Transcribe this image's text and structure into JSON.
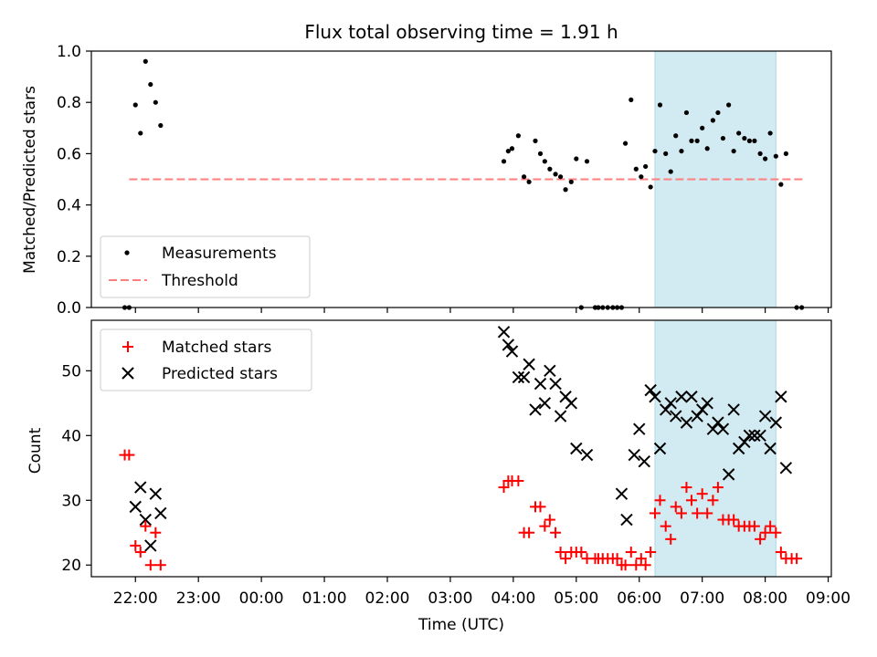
{
  "chart_data": [
    {
      "type": "scatter",
      "title": "Flux total observing time = 1.91 h",
      "xlabel": "",
      "ylabel": "Matched/Predicted stars",
      "xlim_hours": [
        -2.7,
        9.05
      ],
      "ylim": [
        0,
        1.0
      ],
      "yticks": [
        "0.0",
        "0.2",
        "0.4",
        "0.6",
        "0.8",
        "1.0"
      ],
      "highlight_span_hours": [
        6.25,
        8.17
      ],
      "highlight_color": "#add8e6",
      "threshold": {
        "name": "Threshold",
        "value": 0.5,
        "x_start": -2.1,
        "x_end": 8.6,
        "color": "#ff7f7f",
        "style": "dashed"
      },
      "legend": {
        "position": "lower-left",
        "entries": [
          "Measurements",
          "Threshold"
        ]
      },
      "series": [
        {
          "name": "Measurements",
          "marker": "dot",
          "color": "#000000",
          "points": [
            [
              -2.17,
              0.0
            ],
            [
              -2.1,
              0.0
            ],
            [
              -2.0,
              0.79
            ],
            [
              -1.92,
              0.68
            ],
            [
              -1.84,
              0.96
            ],
            [
              -1.76,
              0.87
            ],
            [
              -1.68,
              0.8
            ],
            [
              -1.6,
              0.71
            ],
            [
              3.85,
              0.57
            ],
            [
              3.92,
              0.61
            ],
            [
              3.98,
              0.62
            ],
            [
              4.08,
              0.67
            ],
            [
              4.17,
              0.51
            ],
            [
              4.25,
              0.49
            ],
            [
              4.35,
              0.65
            ],
            [
              4.43,
              0.6
            ],
            [
              4.5,
              0.57
            ],
            [
              4.58,
              0.54
            ],
            [
              4.67,
              0.52
            ],
            [
              4.75,
              0.51
            ],
            [
              4.83,
              0.46
            ],
            [
              4.92,
              0.49
            ],
            [
              5.0,
              0.58
            ],
            [
              5.08,
              0.0
            ],
            [
              5.17,
              0.57
            ],
            [
              5.3,
              0.0
            ],
            [
              5.35,
              0.0
            ],
            [
              5.42,
              0.0
            ],
            [
              5.5,
              0.0
            ],
            [
              5.58,
              0.0
            ],
            [
              5.65,
              0.0
            ],
            [
              5.72,
              0.0
            ],
            [
              5.78,
              0.64
            ],
            [
              5.87,
              0.81
            ],
            [
              5.95,
              0.54
            ],
            [
              6.03,
              0.51
            ],
            [
              6.1,
              0.55
            ],
            [
              6.18,
              0.47
            ],
            [
              6.25,
              0.61
            ],
            [
              6.33,
              0.79
            ],
            [
              6.42,
              0.6
            ],
            [
              6.5,
              0.53
            ],
            [
              6.58,
              0.67
            ],
            [
              6.67,
              0.61
            ],
            [
              6.75,
              0.76
            ],
            [
              6.83,
              0.65
            ],
            [
              6.92,
              0.65
            ],
            [
              7.0,
              0.7
            ],
            [
              7.08,
              0.62
            ],
            [
              7.17,
              0.73
            ],
            [
              7.25,
              0.76
            ],
            [
              7.33,
              0.66
            ],
            [
              7.42,
              0.79
            ],
            [
              7.5,
              0.61
            ],
            [
              7.58,
              0.68
            ],
            [
              7.67,
              0.66
            ],
            [
              7.75,
              0.65
            ],
            [
              7.83,
              0.65
            ],
            [
              7.92,
              0.6
            ],
            [
              8.0,
              0.58
            ],
            [
              8.08,
              0.68
            ],
            [
              8.17,
              0.59
            ],
            [
              8.25,
              0.48
            ],
            [
              8.33,
              0.6
            ],
            [
              8.5,
              0.0
            ],
            [
              8.58,
              0.0
            ]
          ]
        }
      ]
    },
    {
      "type": "scatter",
      "title": "",
      "xlabel": "Time (UTC)",
      "ylabel": "Count",
      "xlim_hours": [
        -2.7,
        9.05
      ],
      "ylim": [
        18.2,
        57.8
      ],
      "yticks": [
        "20",
        "30",
        "40",
        "50"
      ],
      "xticks": [
        "22:00",
        "23:00",
        "00:00",
        "01:00",
        "02:00",
        "03:00",
        "04:00",
        "05:00",
        "06:00",
        "07:00",
        "08:00",
        "09:00"
      ],
      "highlight_span_hours": [
        6.25,
        8.17
      ],
      "highlight_color": "#add8e6",
      "legend": {
        "position": "upper-left",
        "entries": [
          "Matched stars",
          "Predicted stars"
        ]
      },
      "series": [
        {
          "name": "Matched stars",
          "marker": "plus",
          "color": "#ff0000",
          "points": [
            [
              -2.17,
              37
            ],
            [
              -2.1,
              37
            ],
            [
              -2.0,
              23
            ],
            [
              -1.92,
              22
            ],
            [
              -1.84,
              26
            ],
            [
              -1.76,
              20
            ],
            [
              -1.68,
              25
            ],
            [
              -1.6,
              20
            ],
            [
              3.85,
              32
            ],
            [
              3.92,
              33
            ],
            [
              3.98,
              33
            ],
            [
              4.08,
              33
            ],
            [
              4.17,
              25
            ],
            [
              4.25,
              25
            ],
            [
              4.35,
              29
            ],
            [
              4.43,
              29
            ],
            [
              4.5,
              26
            ],
            [
              4.58,
              27
            ],
            [
              4.67,
              25
            ],
            [
              4.75,
              22
            ],
            [
              4.83,
              21
            ],
            [
              4.92,
              22
            ],
            [
              5.0,
              22
            ],
            [
              5.08,
              22
            ],
            [
              5.17,
              21
            ],
            [
              5.3,
              21
            ],
            [
              5.35,
              21
            ],
            [
              5.42,
              21
            ],
            [
              5.5,
              21
            ],
            [
              5.58,
              21
            ],
            [
              5.65,
              21
            ],
            [
              5.72,
              20
            ],
            [
              5.78,
              20
            ],
            [
              5.87,
              22
            ],
            [
              5.95,
              20
            ],
            [
              6.03,
              21
            ],
            [
              6.1,
              20
            ],
            [
              6.18,
              22
            ],
            [
              6.25,
              28
            ],
            [
              6.33,
              30
            ],
            [
              6.42,
              26
            ],
            [
              6.5,
              24
            ],
            [
              6.58,
              29
            ],
            [
              6.67,
              28
            ],
            [
              6.75,
              32
            ],
            [
              6.83,
              30
            ],
            [
              6.92,
              28
            ],
            [
              7.0,
              31
            ],
            [
              7.08,
              28
            ],
            [
              7.17,
              30
            ],
            [
              7.25,
              32
            ],
            [
              7.33,
              27
            ],
            [
              7.42,
              27
            ],
            [
              7.5,
              27
            ],
            [
              7.58,
              26
            ],
            [
              7.67,
              26
            ],
            [
              7.75,
              26
            ],
            [
              7.83,
              26
            ],
            [
              7.92,
              24
            ],
            [
              8.0,
              25
            ],
            [
              8.08,
              26
            ],
            [
              8.17,
              25
            ],
            [
              8.25,
              22
            ],
            [
              8.33,
              21
            ],
            [
              8.42,
              21
            ],
            [
              8.5,
              21
            ]
          ]
        },
        {
          "name": "Predicted stars",
          "marker": "x",
          "color": "#000000",
          "points": [
            [
              -2.0,
              29
            ],
            [
              -1.92,
              32
            ],
            [
              -1.84,
              27
            ],
            [
              -1.76,
              23
            ],
            [
              -1.68,
              31
            ],
            [
              -1.6,
              28
            ],
            [
              3.85,
              56
            ],
            [
              3.92,
              54
            ],
            [
              3.98,
              53
            ],
            [
              4.08,
              49
            ],
            [
              4.17,
              49
            ],
            [
              4.25,
              51
            ],
            [
              4.35,
              44
            ],
            [
              4.43,
              48
            ],
            [
              4.5,
              45
            ],
            [
              4.58,
              50
            ],
            [
              4.67,
              48
            ],
            [
              4.75,
              43
            ],
            [
              4.83,
              46
            ],
            [
              4.92,
              45
            ],
            [
              5.0,
              38
            ],
            [
              5.17,
              37
            ],
            [
              5.72,
              31
            ],
            [
              5.8,
              27
            ],
            [
              5.92,
              37
            ],
            [
              6.0,
              41
            ],
            [
              6.08,
              36
            ],
            [
              6.18,
              47
            ],
            [
              6.25,
              46
            ],
            [
              6.33,
              38
            ],
            [
              6.42,
              44
            ],
            [
              6.5,
              45
            ],
            [
              6.58,
              43
            ],
            [
              6.67,
              46
            ],
            [
              6.75,
              42
            ],
            [
              6.83,
              46
            ],
            [
              6.92,
              43
            ],
            [
              7.0,
              44
            ],
            [
              7.08,
              45
            ],
            [
              7.17,
              41
            ],
            [
              7.25,
              42
            ],
            [
              7.33,
              41
            ],
            [
              7.42,
              34
            ],
            [
              7.5,
              44
            ],
            [
              7.58,
              38
            ],
            [
              7.67,
              39
            ],
            [
              7.75,
              40
            ],
            [
              7.83,
              40
            ],
            [
              7.92,
              40
            ],
            [
              8.0,
              43
            ],
            [
              8.08,
              38
            ],
            [
              8.17,
              42
            ],
            [
              8.25,
              46
            ],
            [
              8.33,
              35
            ]
          ]
        }
      ]
    }
  ]
}
